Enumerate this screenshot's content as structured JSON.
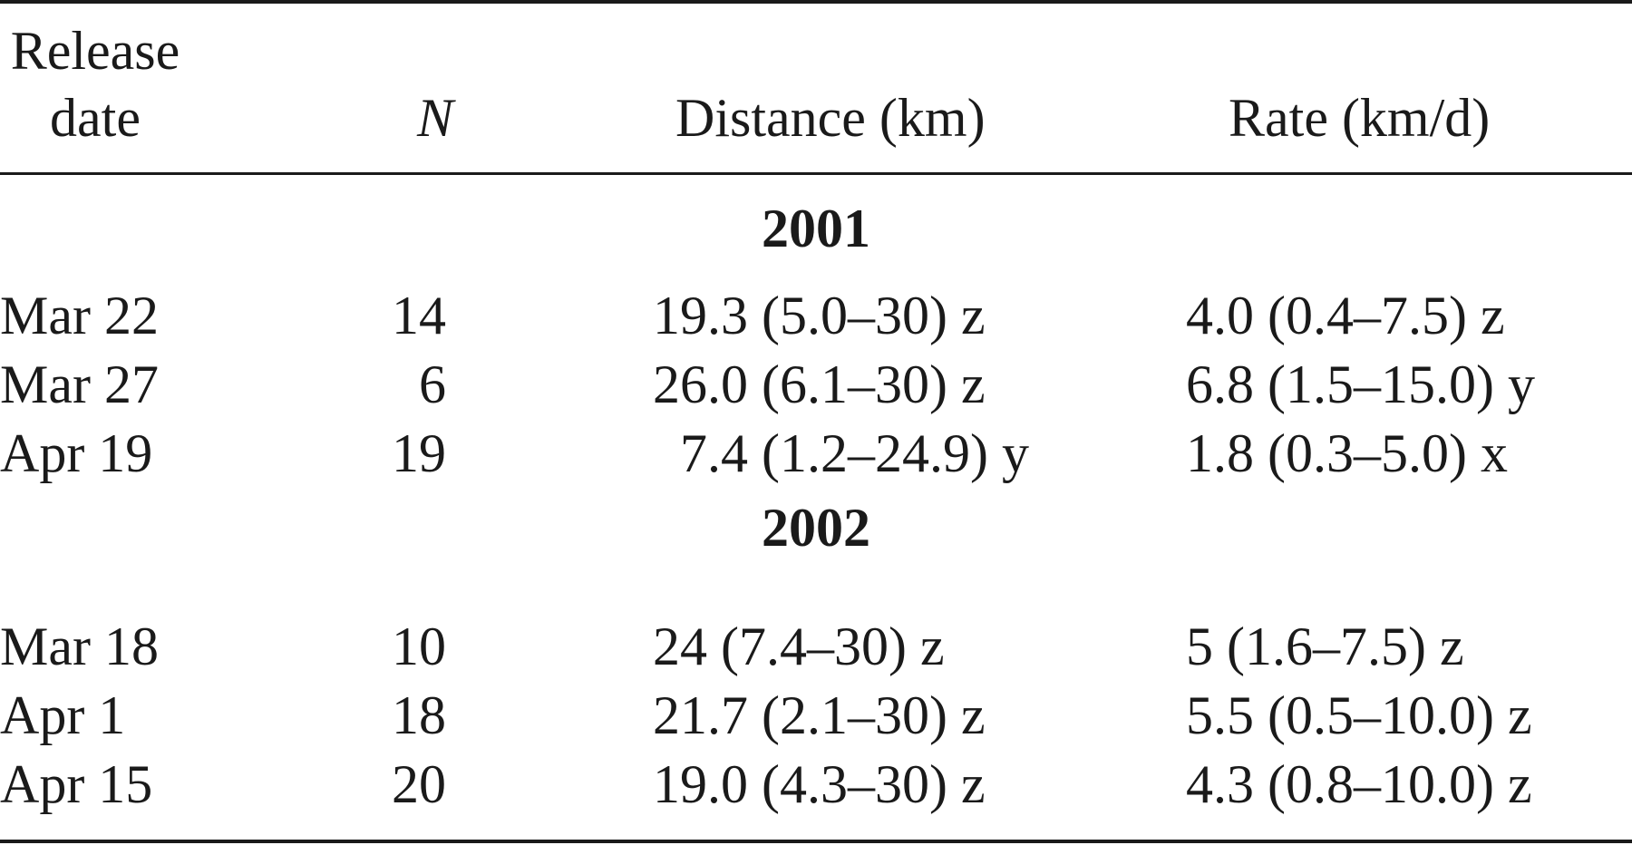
{
  "header": {
    "release_date_line1": "Release",
    "release_date_line2": "date",
    "n": "N",
    "distance": "Distance (km)",
    "rate": "Rate (km/d)"
  },
  "groups": [
    {
      "year": "2001",
      "rows": [
        {
          "date": "Mar 22",
          "n": "14",
          "distance": "19.3 (5.0–30) z",
          "rate": "4.0 (0.4–7.5) z"
        },
        {
          "date": "Mar 27",
          "n": "6",
          "distance": "26.0 (6.1–30) z",
          "rate": "6.8 (1.5–15.0) y"
        },
        {
          "date": "Apr 19",
          "n": "19",
          "distance": "  7.4 (1.2–24.9) y",
          "rate": "1.8 (0.3–5.0) x"
        }
      ]
    },
    {
      "year": "2002",
      "rows": [
        {
          "date": "Mar 18",
          "n": "10",
          "distance": "24 (7.4–30) z",
          "rate": "5 (1.6–7.5) z"
        },
        {
          "date": "Apr 1",
          "n": "18",
          "distance": "21.7 (2.1–30) z",
          "rate": "5.5 (0.5–10.0) z"
        },
        {
          "date": "Apr 15",
          "n": "20",
          "distance": "19.0 (4.3–30) z",
          "rate": "4.3 (0.8–10.0) z"
        }
      ]
    }
  ]
}
